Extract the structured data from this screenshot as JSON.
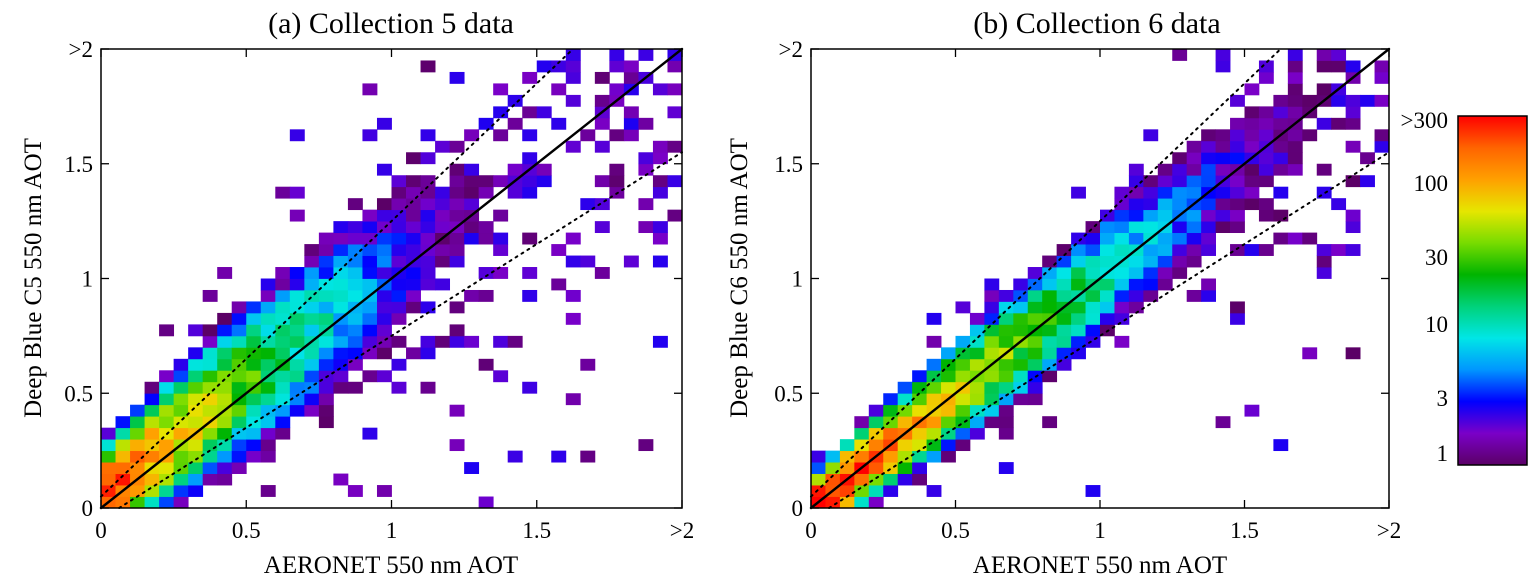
{
  "figure": {
    "colorbar": {
      "scale": "log",
      "range": [
        1,
        300
      ],
      "ticks": [
        "1",
        "3",
        "10",
        "30",
        "100",
        ">300"
      ],
      "tick_values": [
        1,
        3,
        10,
        30,
        100,
        300
      ],
      "colors": [
        "#5b0066",
        "#7a00c8",
        "#0000ff",
        "#0096ff",
        "#00e6e6",
        "#00d27a",
        "#00b400",
        "#78dc00",
        "#e6e600",
        "#ffa000",
        "#ff6400",
        "#ff0000"
      ]
    }
  },
  "chart_data": [
    {
      "type": "heatmap",
      "title": "(a) Collection 5 data",
      "xlabel": "AERONET 550 nm AOT",
      "ylabel": "Deep Blue C5 550 nm AOT",
      "xlim": [
        0,
        2
      ],
      "ylim": [
        0,
        2
      ],
      "xticks": [
        "0",
        "0.5",
        "1",
        "1.5",
        ">2"
      ],
      "yticks": [
        "0",
        "0.5",
        "1",
        "1.5",
        ">2"
      ],
      "tick_values": [
        0,
        0.5,
        1,
        1.5,
        2
      ],
      "bin_width": 0.05,
      "color_scale": "log",
      "color_range": [
        1,
        300
      ],
      "ridge": {
        "intercept": 0.05,
        "slope": 1.0,
        "spread": 0.22,
        "peak_count": 300,
        "decay": 4.5
      },
      "reference_lines": [
        {
          "style": "solid",
          "color": "#000000",
          "equation": "y = x"
        },
        {
          "style": "dotted",
          "color": "#000000",
          "equation": "y = 0.05 + 1.2x"
        },
        {
          "style": "dotted",
          "color": "#000000",
          "equation": "y = -0.05 + 0.8x"
        }
      ]
    },
    {
      "type": "heatmap",
      "title": "(b) Collection 6 data",
      "xlabel": "AERONET 550 nm AOT",
      "ylabel": "Deep Blue C6 550 nm AOT",
      "xlim": [
        0,
        2
      ],
      "ylim": [
        0,
        2
      ],
      "xticks": [
        "0",
        "0.5",
        "1",
        "1.5",
        ">2"
      ],
      "yticks": [
        "0",
        "0.5",
        "1",
        "1.5",
        ">2"
      ],
      "tick_values": [
        0,
        0.5,
        1,
        1.5,
        2
      ],
      "bin_width": 0.05,
      "color_scale": "log",
      "color_range": [
        1,
        300
      ],
      "ridge": {
        "intercept": 0.0,
        "slope": 1.0,
        "spread": 0.14,
        "peak_count": 450,
        "decay": 3.6
      },
      "reference_lines": [
        {
          "style": "solid",
          "color": "#000000",
          "equation": "y = x"
        },
        {
          "style": "dotted",
          "color": "#000000",
          "equation": "y = 0.05 + 1.2x"
        },
        {
          "style": "dotted",
          "color": "#000000",
          "equation": "y = -0.05 + 0.8x"
        }
      ]
    }
  ]
}
